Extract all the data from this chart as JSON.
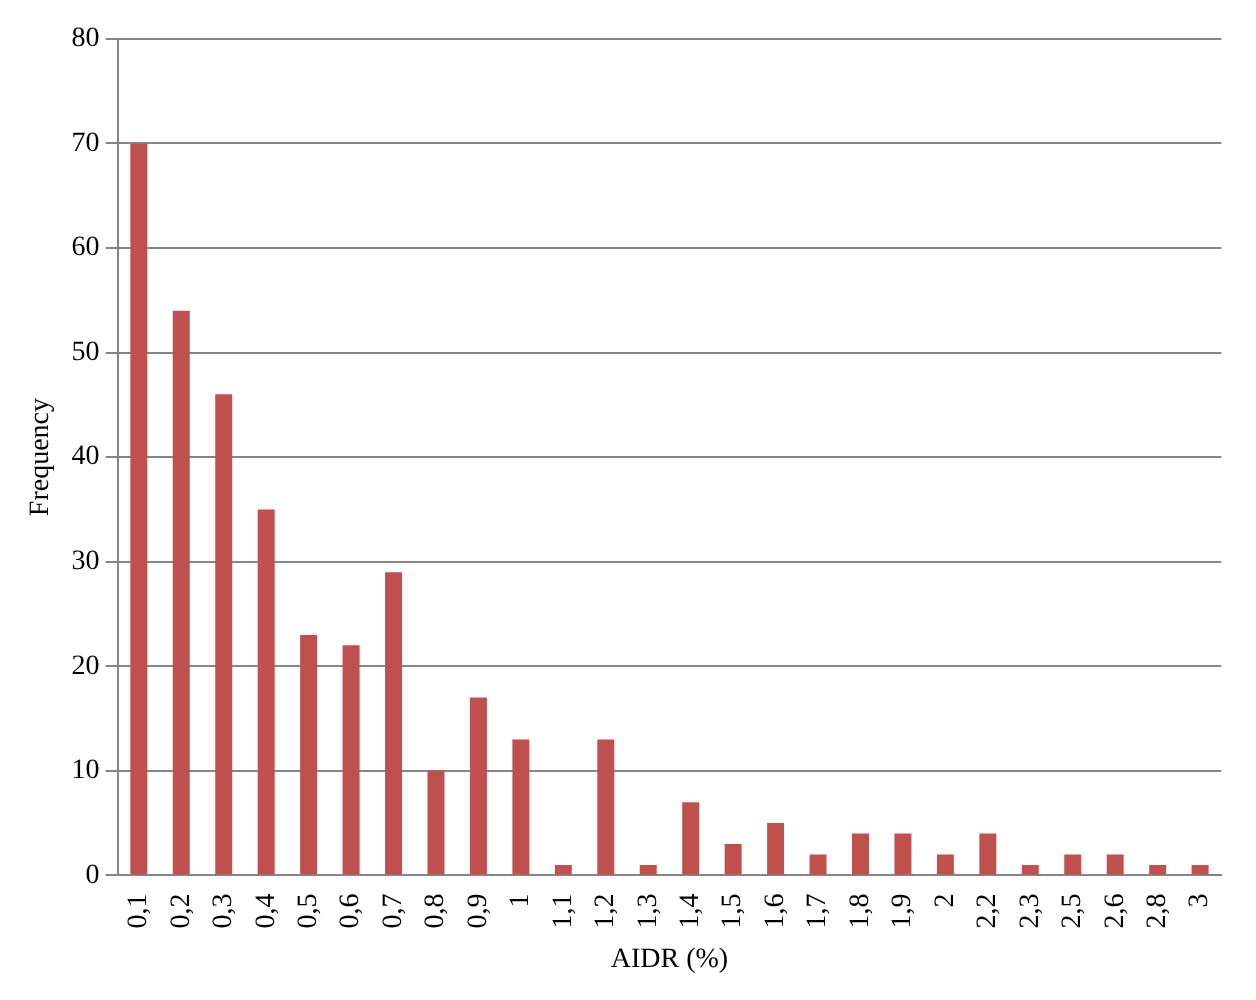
{
  "chart_data": {
    "type": "bar",
    "xlabel": "AIDR (%)",
    "ylabel": "Frequency",
    "categories": [
      "0,1",
      "0,2",
      "0,3",
      "0,4",
      "0,5",
      "0,6",
      "0,7",
      "0,8",
      "0,9",
      "1",
      "1,1",
      "1,2",
      "1,3",
      "1,4",
      "1,5",
      "1,6",
      "1,7",
      "1,8",
      "1,9",
      "2",
      "2,2",
      "2,3",
      "2,5",
      "2,6",
      "2,8",
      "3"
    ],
    "values": [
      70,
      54,
      46,
      35,
      23,
      22,
      29,
      10,
      17,
      13,
      1,
      13,
      1,
      7,
      3,
      5,
      2,
      4,
      4,
      2,
      4,
      1,
      2,
      2,
      1,
      1
    ],
    "color": "#c0504d",
    "ylim": [
      0,
      80
    ],
    "yticks": [
      0,
      10,
      20,
      30,
      40,
      50,
      60,
      70,
      80
    ],
    "grid": "y",
    "legend": false
  }
}
